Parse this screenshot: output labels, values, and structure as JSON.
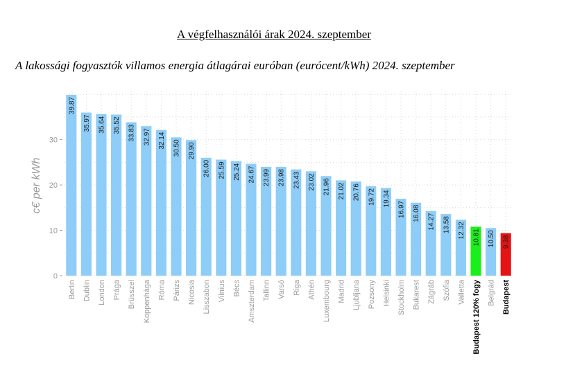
{
  "page": {
    "heading": "A végfelhasználói árak 2024. szeptember"
  },
  "chart_data": {
    "type": "bar",
    "title": "A lakossági fogyasztók villamos energia átlagárai euróban (eurócent/kWh) 2024. szeptember",
    "ylabel": "c€ per kWh",
    "xlabel": "",
    "ylim": [
      0,
      40
    ],
    "yticks": [
      0,
      10,
      20,
      30
    ],
    "grid": true,
    "value_labels": [
      "39.87",
      "35.97",
      "35.64",
      "35.52",
      "33.83",
      "32.97",
      "32.14",
      "30.50",
      "29.90",
      "26.00",
      "25.59",
      "25.24",
      "24.67",
      "23.99",
      "23.98",
      "23.43",
      "23.02",
      "21.96",
      "21.02",
      "20.76",
      "19.72",
      "19.34",
      "16.97",
      "16.08",
      "14.27",
      "13.58",
      "12.32",
      "10.81",
      "10.50",
      "9.38"
    ],
    "categories": [
      "Berlin",
      "Dublin",
      "London",
      "Prága",
      "Brüsszel",
      "Koppenhága",
      "Róma",
      "Párizs",
      "Nicosia",
      "Lisszabon",
      "Vilnius",
      "Bécs",
      "Amszterdam",
      "Tallinn",
      "Varsó",
      "Riga",
      "Athén",
      "Luxembourg",
      "Madrid",
      "Ljubljana",
      "Pozsony",
      "Helsinki",
      "Stockholm",
      "Bukarest",
      "Zágráb",
      "Szófia",
      "Valletta",
      "Budapest 120% fogy",
      "Belgrád",
      "Budapest"
    ],
    "values": [
      39.87,
      35.97,
      35.64,
      35.52,
      33.83,
      32.97,
      32.14,
      30.5,
      29.9,
      26.0,
      25.59,
      25.24,
      24.67,
      23.99,
      23.98,
      23.43,
      23.02,
      21.96,
      21.02,
      20.76,
      19.72,
      19.34,
      16.97,
      16.08,
      14.27,
      13.58,
      12.32,
      10.81,
      10.5,
      9.38
    ],
    "colors": {
      "default": "#8ecdf7",
      "highlight_120": "#1bef1b",
      "highlight_budapest": "#e41414"
    },
    "bold_categories": [
      "Budapest 120% fogy",
      "Budapest"
    ]
  }
}
